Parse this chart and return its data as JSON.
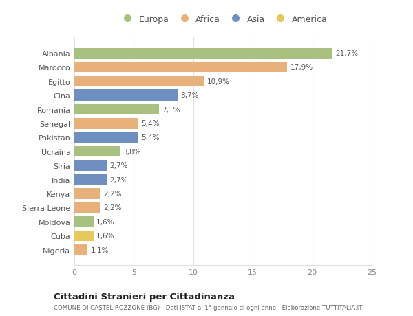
{
  "countries": [
    "Albania",
    "Marocco",
    "Egitto",
    "Cina",
    "Romania",
    "Senegal",
    "Pakistan",
    "Ucraina",
    "Siria",
    "India",
    "Kenya",
    "Sierra Leone",
    "Moldova",
    "Cuba",
    "Nigeria"
  ],
  "values": [
    21.7,
    17.9,
    10.9,
    8.7,
    7.1,
    5.4,
    5.4,
    3.8,
    2.7,
    2.7,
    2.2,
    2.2,
    1.6,
    1.6,
    1.1
  ],
  "labels": [
    "21,7%",
    "17,9%",
    "10,9%",
    "8,7%",
    "7,1%",
    "5,4%",
    "5,4%",
    "3,8%",
    "2,7%",
    "2,7%",
    "2,2%",
    "2,2%",
    "1,6%",
    "1,6%",
    "1,1%"
  ],
  "continents": [
    "Europa",
    "Africa",
    "Africa",
    "Asia",
    "Europa",
    "Africa",
    "Asia",
    "Europa",
    "Asia",
    "Asia",
    "Africa",
    "Africa",
    "Europa",
    "America",
    "Africa"
  ],
  "continent_colors": {
    "Europa": "#a8c080",
    "Africa": "#e8b07a",
    "Asia": "#6e8fbf",
    "America": "#e8c85a"
  },
  "legend_order": [
    "Europa",
    "Africa",
    "Asia",
    "America"
  ],
  "title": "Cittadini Stranieri per Cittadinanza",
  "subtitle": "COMUNE DI CASTEL ROZZONE (BG) - Dati ISTAT al 1° gennaio di ogni anno - Elaborazione TUTTITALIA.IT",
  "xlim": [
    0,
    25
  ],
  "xticks": [
    0,
    5,
    10,
    15,
    20,
    25
  ],
  "background_color": "#ffffff",
  "grid_color": "#e0e0e0",
  "bar_height": 0.75
}
